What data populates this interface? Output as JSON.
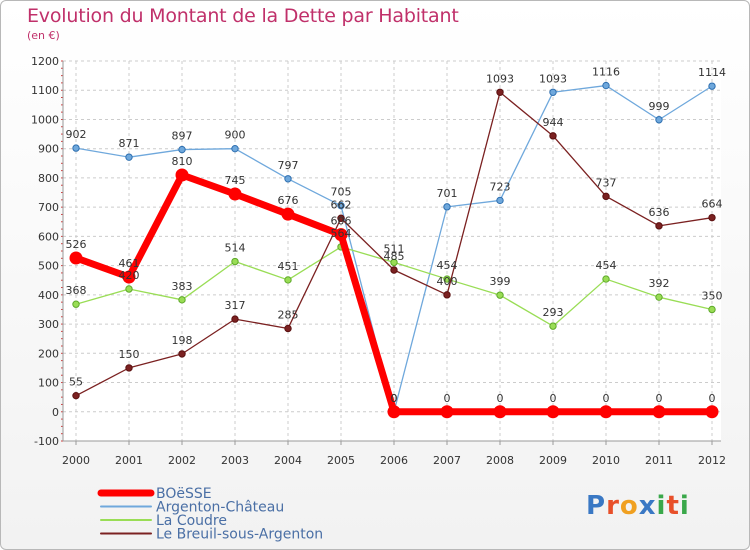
{
  "title": "Evolution du Montant de la Dette par Habitant",
  "subtitle": "(en €)",
  "logo": "Proxiti",
  "chart_data": {
    "type": "line",
    "title": "Evolution du Montant de la Dette par Habitant",
    "subtitle": "(en €)",
    "x": [
      "2000",
      "2001",
      "2002",
      "2003",
      "2004",
      "2005",
      "2006",
      "2007",
      "2008",
      "2009",
      "2010",
      "2011",
      "2012"
    ],
    "ylim": [
      -100,
      1200
    ],
    "yticks": [
      "-100",
      "0",
      "100",
      "200",
      "300",
      "400",
      "500",
      "600",
      "700",
      "800",
      "900",
      "1000",
      "1100",
      "1200"
    ],
    "grid": true,
    "legend": "bottom-left",
    "series": [
      {
        "name": "BOëSSE",
        "color": "#ff0000",
        "values": [
          526,
          461,
          810,
          745,
          676,
          606,
          0,
          0,
          0,
          0,
          0,
          0,
          0
        ],
        "labels": [
          "526",
          "461",
          "810",
          "745",
          "676",
          "606",
          "0",
          "0",
          "0",
          "0",
          "0",
          "0",
          "0"
        ]
      },
      {
        "name": "Argenton-Château",
        "color": "#6fa8dc",
        "values": [
          902,
          871,
          897,
          900,
          797,
          705,
          0,
          701,
          723,
          1093,
          1116,
          999,
          1114
        ],
        "labels": [
          "902",
          "871",
          "897",
          "900",
          "797",
          "705",
          "0",
          "701",
          "723",
          "1093",
          "1116",
          "999",
          "1114"
        ]
      },
      {
        "name": "La Coudre",
        "color": "#99dd55",
        "values": [
          368,
          420,
          383,
          514,
          451,
          564,
          511,
          454,
          399,
          293,
          454,
          392,
          350
        ],
        "labels": [
          "368",
          "420",
          "383",
          "514",
          "451",
          "564",
          "511",
          "454",
          "399",
          "293",
          "454",
          "392",
          "350"
        ]
      },
      {
        "name": "Le Breuil-sous-Argenton",
        "color": "#7b2121",
        "values": [
          55,
          150,
          198,
          317,
          285,
          662,
          485,
          400,
          1093,
          944,
          737,
          636,
          664
        ],
        "labels": [
          "55",
          "150",
          "198",
          "317",
          "285",
          "662",
          "485",
          "400",
          "1093",
          "944",
          "737",
          "636",
          "664"
        ]
      }
    ]
  }
}
